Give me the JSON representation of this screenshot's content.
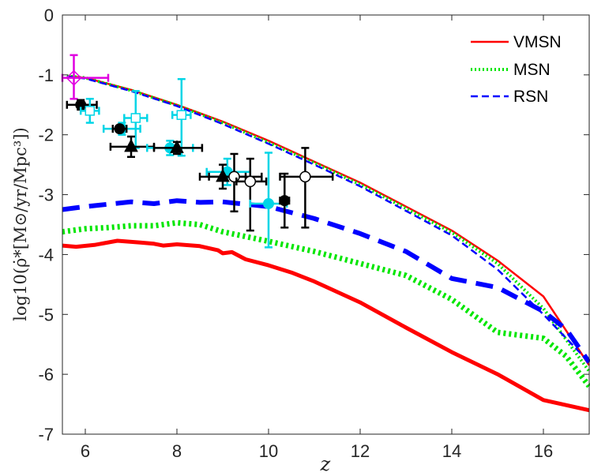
{
  "chart_data": {
    "type": "line",
    "xlabel": "z",
    "ylabel": "log10(ρ̇*[M⊙/yr/Mpc³])",
    "xlim": [
      5.5,
      17
    ],
    "ylim": [
      -7,
      0
    ],
    "xticks": [
      6,
      8,
      10,
      12,
      14,
      16
    ],
    "yticks": [
      0,
      -1,
      -2,
      -3,
      -4,
      -5,
      -6,
      -7
    ],
    "xtick_labels": [
      "6",
      "8",
      "10",
      "12",
      "14",
      "16"
    ],
    "ytick_labels": [
      "0",
      "-1",
      "-2",
      "-3",
      "-4",
      "-5",
      "-6",
      "-7"
    ],
    "legend": [
      "VMSN",
      "MSN",
      "RSN"
    ],
    "legend_position": "top-right",
    "series": [
      {
        "name": "VMSN",
        "style": "solid",
        "weight": "thin",
        "color": "#ff0000",
        "x": [
          5.6,
          6,
          7,
          8,
          9,
          10,
          11,
          12,
          13,
          14,
          15,
          16,
          17
        ],
        "y": [
          -1.02,
          -1.05,
          -1.25,
          -1.5,
          -1.78,
          -2.1,
          -2.45,
          -2.8,
          -3.2,
          -3.6,
          -4.1,
          -4.7,
          -5.85
        ]
      },
      {
        "name": "MSN",
        "style": "dotted",
        "weight": "thin",
        "color": "#00e600",
        "x": [
          5.6,
          6,
          7,
          8,
          9,
          10,
          11,
          12,
          13,
          14,
          15,
          16,
          17
        ],
        "y": [
          -1.02,
          -1.05,
          -1.26,
          -1.51,
          -1.8,
          -2.13,
          -2.47,
          -2.83,
          -3.23,
          -3.63,
          -4.15,
          -4.9,
          -5.95
        ]
      },
      {
        "name": "RSN",
        "style": "dashed",
        "weight": "thin",
        "color": "#0000ff",
        "x": [
          5.6,
          6,
          7,
          8,
          9,
          10,
          11,
          12,
          13,
          14,
          15,
          16,
          17
        ],
        "y": [
          -1.03,
          -1.06,
          -1.27,
          -1.52,
          -1.82,
          -2.15,
          -2.5,
          -2.86,
          -3.27,
          -3.68,
          -4.25,
          -5.0,
          -5.8
        ]
      },
      {
        "name": "VMSN-thick",
        "style": "solid",
        "weight": "thick",
        "color": "#ff0000",
        "x": [
          5.5,
          5.8,
          6.2,
          6.7,
          7.2,
          7.5,
          7.7,
          8,
          8.5,
          8.9,
          9,
          9.2,
          9.5,
          10,
          10.5,
          11,
          12,
          13,
          14,
          15,
          16,
          17
        ],
        "y": [
          -3.85,
          -3.87,
          -3.84,
          -3.77,
          -3.8,
          -3.82,
          -3.85,
          -3.83,
          -3.86,
          -3.93,
          -3.98,
          -3.96,
          -4.08,
          -4.18,
          -4.3,
          -4.45,
          -4.8,
          -5.22,
          -5.63,
          -6.0,
          -6.43,
          -6.6
        ]
      },
      {
        "name": "MSN-thick",
        "style": "dotted",
        "weight": "thick",
        "color": "#00e600",
        "x": [
          5.5,
          6,
          6.5,
          7,
          7.5,
          8,
          8.5,
          9,
          10,
          11,
          12,
          13,
          14,
          15,
          16,
          16.5,
          17
        ],
        "y": [
          -3.62,
          -3.57,
          -3.55,
          -3.52,
          -3.52,
          -3.47,
          -3.5,
          -3.62,
          -3.78,
          -3.95,
          -4.15,
          -4.35,
          -4.75,
          -5.3,
          -5.4,
          -5.7,
          -6.2
        ]
      },
      {
        "name": "RSN-thick",
        "style": "dashed",
        "weight": "thick",
        "color": "#0000ff",
        "x": [
          5.5,
          6,
          6.5,
          7,
          7.5,
          8,
          8.5,
          9,
          10,
          11,
          12,
          13,
          14,
          15,
          16,
          16.5,
          17
        ],
        "y": [
          -3.25,
          -3.2,
          -3.16,
          -3.12,
          -3.15,
          -3.1,
          -3.13,
          -3.12,
          -3.2,
          -3.4,
          -3.65,
          -3.95,
          -4.4,
          -4.55,
          -4.95,
          -5.25,
          -5.8
        ]
      }
    ],
    "observations": [
      {
        "marker": "open-diamond",
        "color": "#e000e0",
        "x": 5.75,
        "y": -1.05,
        "xerr_lo": 0.25,
        "xerr_hi": 0.75,
        "yerr_lo": 0.35,
        "yerr_hi": 0.38
      },
      {
        "marker": "filled-circle",
        "color": "#000000",
        "x": 5.9,
        "y": -1.5,
        "xerr_lo": 0.3,
        "xerr_hi": 0.35,
        "yerr_lo": 0.08,
        "yerr_hi": 0.08
      },
      {
        "marker": "open-square",
        "color": "#00d5e6",
        "x": 6.1,
        "y": -1.6,
        "xerr_lo": 0.2,
        "xerr_hi": 0.2,
        "yerr_lo": 0.2,
        "yerr_hi": 0.2
      },
      {
        "marker": "filled-circle",
        "color": "#00d5e6",
        "x": 6.8,
        "y": -1.9,
        "xerr_lo": 0.4,
        "xerr_hi": 0.4,
        "yerr_lo": 0.1,
        "yerr_hi": 0.1
      },
      {
        "marker": "filled-circle",
        "color": "#000000",
        "x": 6.75,
        "y": -1.9,
        "xerr_lo": 0.15,
        "xerr_hi": 0.15,
        "yerr_lo": 0.05,
        "yerr_hi": 0.05
      },
      {
        "marker": "open-square",
        "color": "#00d5e6",
        "x": 7.1,
        "y": -1.72,
        "xerr_lo": 0.25,
        "xerr_hi": 0.25,
        "yerr_lo": 0.5,
        "yerr_hi": 0.45
      },
      {
        "marker": "filled-triangle",
        "color": "#000000",
        "x": 7.0,
        "y": -2.2,
        "xerr_lo": 0.45,
        "xerr_hi": 0.5,
        "yerr_lo": 0.17,
        "yerr_hi": 0.17
      },
      {
        "marker": "filled-circle",
        "color": "#00d5e6",
        "x": 7.85,
        "y": -2.22,
        "xerr_lo": 0.5,
        "xerr_hi": 0.5,
        "yerr_lo": 0.12,
        "yerr_hi": 0.12
      },
      {
        "marker": "open-square",
        "color": "#00d5e6",
        "x": 8.1,
        "y": -1.67,
        "xerr_lo": 0.2,
        "xerr_hi": 0.2,
        "yerr_lo": 0.68,
        "yerr_hi": 0.6
      },
      {
        "marker": "filled-triangle",
        "color": "#000000",
        "x": 8.0,
        "y": -2.22,
        "xerr_lo": 0.5,
        "xerr_hi": 0.55,
        "yerr_lo": 0.1,
        "yerr_hi": 0.1
      },
      {
        "marker": "filled-circle",
        "color": "#00d5e6",
        "x": 9.1,
        "y": -2.62,
        "xerr_lo": 0.45,
        "xerr_hi": 0.5,
        "yerr_lo": 0.22,
        "yerr_hi": 0.22
      },
      {
        "marker": "filled-triangle",
        "color": "#000000",
        "x": 9.0,
        "y": -2.7,
        "xerr_lo": 0.5,
        "xerr_hi": 0.5,
        "yerr_lo": 0.2,
        "yerr_hi": 0.2
      },
      {
        "marker": "open-circle",
        "color": "#000000",
        "x": 9.25,
        "y": -2.7,
        "xerr_lo": 0.55,
        "xerr_hi": 0.6,
        "yerr_lo": 0.58,
        "yerr_hi": 0.38
      },
      {
        "marker": "open-circle",
        "color": "#000000",
        "x": 9.6,
        "y": -2.78,
        "xerr_lo": 0.3,
        "xerr_hi": 0.35,
        "yerr_lo": 0.82,
        "yerr_hi": 0.38
      },
      {
        "marker": "filled-circle",
        "color": "#00d5e6",
        "x": 10.0,
        "y": -3.15,
        "xerr_lo": 0.4,
        "xerr_hi": 0.4,
        "yerr_lo": 0.73,
        "yerr_hi": 0.85
      },
      {
        "marker": "filled-circle",
        "color": "#000000",
        "x": 10.35,
        "y": -3.1,
        "xerr_lo": 0.1,
        "xerr_hi": 0.1,
        "yerr_lo": 0.45,
        "yerr_hi": 0.45
      },
      {
        "marker": "open-circle",
        "color": "#000000",
        "x": 10.8,
        "y": -2.7,
        "xerr_lo": 0.55,
        "xerr_hi": 0.6,
        "yerr_lo": 0.85,
        "yerr_hi": 0.48
      }
    ]
  }
}
